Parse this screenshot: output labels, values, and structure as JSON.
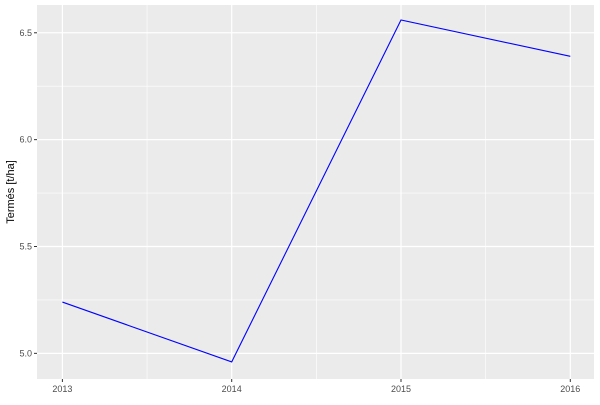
{
  "chart_data": {
    "type": "line",
    "title": "",
    "xlabel": "",
    "ylabel": "Termés [t/ha]",
    "x": [
      2013,
      2014,
      2015,
      2016
    ],
    "series": [
      {
        "values": [
          5.24,
          4.96,
          6.56,
          6.39
        ],
        "color": "#0000ff"
      }
    ],
    "xticks": [
      "2013",
      "2014",
      "2015",
      "2016"
    ],
    "yticks": [
      "5.0",
      "5.5",
      "6.0",
      "6.5"
    ],
    "xlim": [
      2012.85,
      2016.14
    ],
    "ylim": [
      4.88,
      6.63
    ],
    "grid": true,
    "panel_background": "#ebebeb",
    "grid_color": "#ffffff"
  }
}
